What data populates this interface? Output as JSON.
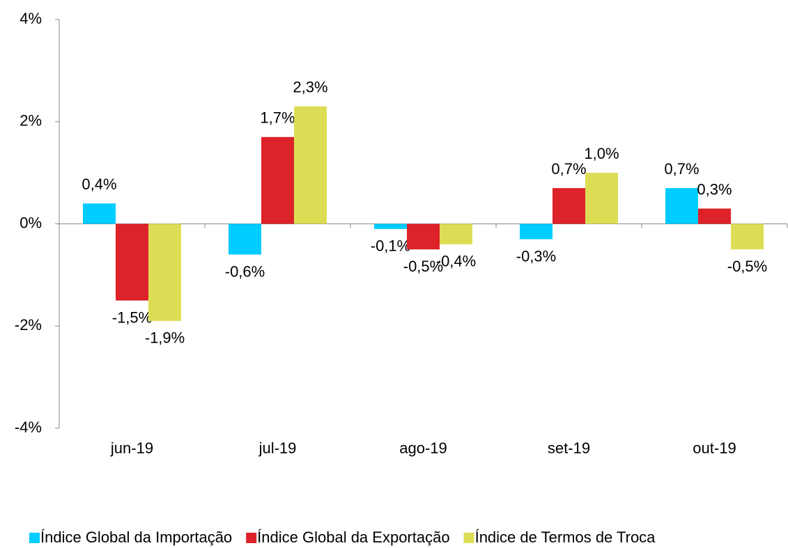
{
  "chart_data": {
    "type": "bar",
    "categories": [
      "jun-19",
      "jul-19",
      "ago-19",
      "set-19",
      "out-19"
    ],
    "series": [
      {
        "name": "Índice Global da Importação",
        "color": "#00ccff",
        "values": [
          0.4,
          -0.6,
          -0.1,
          -0.3,
          0.7
        ],
        "value_labels": [
          "0,4%",
          "-0,6%",
          "-0,1%",
          "-0,3%",
          "0,7%"
        ]
      },
      {
        "name": "Índice Global da Exportação",
        "color": "#dd2229",
        "values": [
          -1.5,
          1.7,
          -0.5,
          0.7,
          0.3
        ],
        "value_labels": [
          "-1,5%",
          "1,7%",
          "-0,5%",
          "0,7%",
          "0,3%"
        ]
      },
      {
        "name": "Índice de Termos de Troca",
        "color": "#dddd55",
        "values": [
          -1.9,
          2.3,
          -0.4,
          1.0,
          -0.5
        ],
        "value_labels": [
          "-1,9%",
          "2,3%",
          "-0,4%",
          "1,0%",
          "-0,5%"
        ]
      }
    ],
    "ylim": [
      -4,
      4
    ],
    "yticks": [
      {
        "value": -4,
        "label": "-4%"
      },
      {
        "value": -2,
        "label": "-2%"
      },
      {
        "value": 0,
        "label": "0%"
      },
      {
        "value": 2,
        "label": "2%"
      },
      {
        "value": 4,
        "label": "4%"
      }
    ],
    "grid": false,
    "legend": "bottom"
  }
}
